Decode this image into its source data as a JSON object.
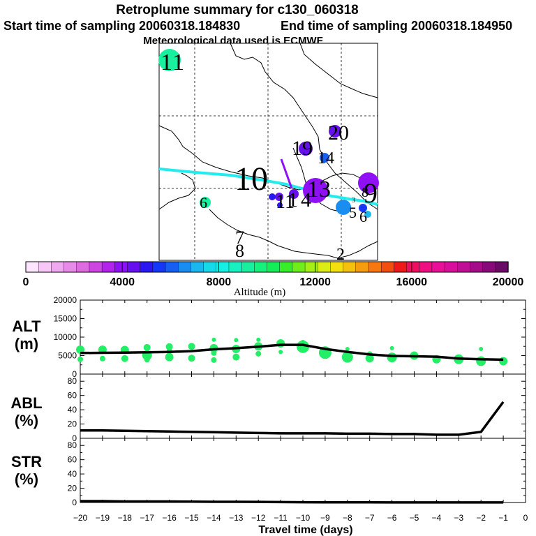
{
  "title": {
    "line1": "Retroplume summary for c130_060318",
    "start_time": "Start time of sampling 20060318.184830",
    "end_time": "End time of sampling 20060318.184950",
    "met": "Meteorological data used is ECMWF"
  },
  "map": {
    "day_labels": [
      "1",
      "1",
      "20",
      "19",
      "14",
      "10",
      "6",
      "11",
      "4",
      "1",
      "13",
      "8",
      "9",
      "5",
      "6",
      "3",
      "7",
      "8",
      "2"
    ],
    "colors": {
      "path": "#22ecec",
      "land": "#000000"
    }
  },
  "colorbar": {
    "label": "Altitude (m)",
    "tick_labels": [
      "0",
      "4000",
      "8000",
      "12000",
      "16000",
      "20000"
    ],
    "colors": [
      "#fde6fd",
      "#f7c8f7",
      "#f0a8f0",
      "#e78ae8",
      "#de6bdf",
      "#cf45e2",
      "#b422ee",
      "#9010f5",
      "#6710ee",
      "#2b18f0",
      "#1438f5",
      "#1560f2",
      "#1a8ef0",
      "#1ab8ee",
      "#18d9ea",
      "#16f0e4",
      "#18f0c2",
      "#18f0a0",
      "#16f07c",
      "#14ee58",
      "#38ee28",
      "#70ee1c",
      "#a6ee18",
      "#dcec14",
      "#f4e010",
      "#f6c00e",
      "#f69c0e",
      "#f6780e",
      "#f24e10",
      "#ee1a1a",
      "#ee1060",
      "#ee1080",
      "#e81096",
      "#d80e9c",
      "#c00e96",
      "#a40c8a",
      "#880a7a",
      "#6a0a66"
    ]
  },
  "chart_data": [
    {
      "type": "line",
      "panel": "ALT",
      "ylabel": "ALT (m)",
      "x": [
        -20,
        -19,
        -18,
        -17,
        -16,
        -15,
        -14,
        -13,
        -12,
        -11,
        -10,
        -9,
        -8,
        -7,
        -6,
        -5,
        -4,
        -3,
        -2,
        -1
      ],
      "series": [
        {
          "name": "ALT median",
          "values": [
            5700,
            5750,
            5800,
            5900,
            6000,
            6200,
            6700,
            7000,
            7400,
            7900,
            7900,
            6800,
            6000,
            5300,
            4900,
            4800,
            4700,
            4200,
            4000,
            3900
          ]
        }
      ],
      "scatter": [
        {
          "x": -20,
          "y": 6600,
          "s": 6
        },
        {
          "x": -20,
          "y": 4000,
          "s": 4
        },
        {
          "x": -19,
          "y": 6600,
          "s": 6
        },
        {
          "x": -19,
          "y": 4200,
          "s": 4
        },
        {
          "x": -18,
          "y": 6500,
          "s": 6
        },
        {
          "x": -18,
          "y": 4200,
          "s": 5
        },
        {
          "x": -17,
          "y": 7200,
          "s": 5
        },
        {
          "x": -17,
          "y": 5100,
          "s": 7
        },
        {
          "x": -17,
          "y": 3900,
          "s": 4
        },
        {
          "x": -16,
          "y": 7400,
          "s": 5
        },
        {
          "x": -16,
          "y": 6200,
          "s": 4
        },
        {
          "x": -16,
          "y": 4600,
          "s": 6
        },
        {
          "x": -15,
          "y": 7500,
          "s": 5
        },
        {
          "x": -15,
          "y": 4300,
          "s": 5
        },
        {
          "x": -14,
          "y": 9300,
          "s": 3
        },
        {
          "x": -14,
          "y": 7000,
          "s": 6
        },
        {
          "x": -14,
          "y": 5700,
          "s": 4
        },
        {
          "x": -14,
          "y": 3800,
          "s": 4
        },
        {
          "x": -13,
          "y": 9200,
          "s": 3
        },
        {
          "x": -13,
          "y": 6800,
          "s": 6
        },
        {
          "x": -13,
          "y": 4600,
          "s": 5
        },
        {
          "x": -12,
          "y": 9300,
          "s": 3
        },
        {
          "x": -12,
          "y": 7500,
          "s": 6
        },
        {
          "x": -12,
          "y": 5500,
          "s": 4
        },
        {
          "x": -11,
          "y": 8300,
          "s": 6
        },
        {
          "x": -11,
          "y": 6000,
          "s": 3
        },
        {
          "x": -10,
          "y": 8700,
          "s": 3
        },
        {
          "x": -10,
          "y": 7400,
          "s": 9
        },
        {
          "x": -9,
          "y": 6600,
          "s": 4
        },
        {
          "x": -9,
          "y": 5800,
          "s": 9
        },
        {
          "x": -8,
          "y": 6800,
          "s": 3
        },
        {
          "x": -8,
          "y": 4600,
          "s": 8
        },
        {
          "x": -7,
          "y": 5400,
          "s": 4
        },
        {
          "x": -7,
          "y": 4300,
          "s": 6
        },
        {
          "x": -6,
          "y": 7000,
          "s": 3
        },
        {
          "x": -6,
          "y": 4500,
          "s": 7
        },
        {
          "x": -5,
          "y": 5000,
          "s": 6
        },
        {
          "x": -4,
          "y": 4000,
          "s": 6
        },
        {
          "x": -3,
          "y": 4000,
          "s": 7
        },
        {
          "x": -2,
          "y": 6800,
          "s": 3
        },
        {
          "x": -2,
          "y": 3500,
          "s": 7
        },
        {
          "x": -1,
          "y": 3500,
          "s": 6
        }
      ],
      "xlim": [
        -20,
        0
      ],
      "ylim": [
        0,
        20000
      ],
      "yticks": [
        0,
        5000,
        10000,
        15000,
        20000
      ],
      "marker_color": "#22ee66"
    },
    {
      "type": "line",
      "panel": "ABL",
      "ylabel": "ABL (%)",
      "x": [
        -20,
        -19,
        -18,
        -17,
        -16,
        -15,
        -14,
        -13,
        -12,
        -11,
        -10,
        -9,
        -8,
        -7,
        -6,
        -5,
        -4,
        -3,
        -2,
        -1
      ],
      "series": [
        {
          "name": "ABL fraction",
          "values": [
            11,
            11,
            10.5,
            10,
            9.5,
            9,
            8.5,
            8,
            7.5,
            7,
            7,
            7,
            6.5,
            6.5,
            6,
            6,
            5,
            5,
            9,
            51
          ]
        }
      ],
      "xlim": [
        -20,
        0
      ],
      "ylim": [
        0,
        90
      ],
      "yticks": [
        0,
        20,
        40,
        60,
        80
      ]
    },
    {
      "type": "line",
      "panel": "STR",
      "ylabel": "STR (%)",
      "x": [
        -20,
        -19,
        -18,
        -17,
        -16,
        -15,
        -14,
        -13,
        -12,
        -11,
        -10,
        -9,
        -8,
        -7,
        -6,
        -5,
        -4,
        -3,
        -2,
        -1
      ],
      "series": [
        {
          "name": "STR fraction",
          "values": [
            2,
            2,
            1.5,
            1.5,
            1.5,
            1.2,
            1,
            1,
            0.8,
            0.6,
            0.4,
            0.3,
            0.2,
            0.2,
            0.1,
            0.1,
            0.1,
            0.1,
            0.1,
            0.1
          ]
        }
      ],
      "xlim": [
        -20,
        0
      ],
      "ylim": [
        0,
        90
      ],
      "yticks": [
        0,
        20,
        40,
        60,
        80
      ],
      "xticks": [
        -20,
        -19,
        -18,
        -17,
        -16,
        -15,
        -14,
        -13,
        -12,
        -11,
        -10,
        -9,
        -8,
        -7,
        -6,
        -5,
        -4,
        -3,
        -2,
        -1,
        0
      ],
      "xlabel": "Travel time (days)"
    }
  ],
  "panel_labels": {
    "alt": {
      "line1": "ALT",
      "line2": "(m)"
    },
    "abl": {
      "line1": "ABL",
      "line2": "(%)"
    },
    "str": {
      "line1": "STR",
      "line2": "(%)"
    }
  }
}
